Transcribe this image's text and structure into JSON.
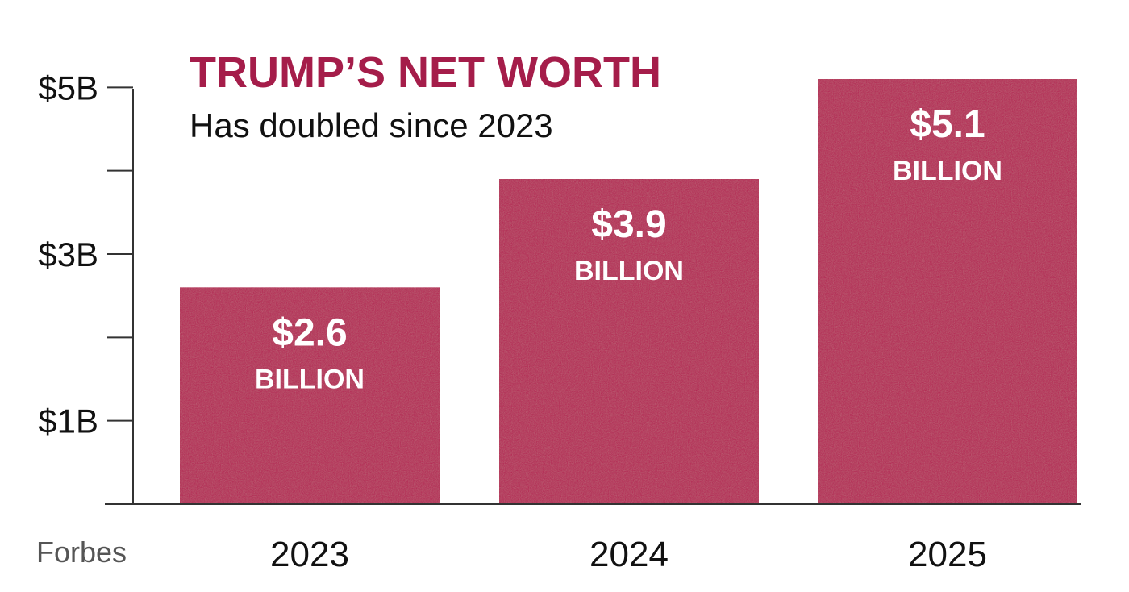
{
  "colors": {
    "bar": "#b52453",
    "title": "#a51d4a",
    "axis": "#333333",
    "text": "#111111",
    "source": "#555555"
  },
  "chart_data": {
    "type": "bar",
    "title": "TRUMP’S NET WORTH",
    "subtitle": "Has doubled since 2023",
    "source": "Forbes",
    "categories": [
      "2023",
      "2024",
      "2025"
    ],
    "values": [
      2.6,
      3.9,
      5.1
    ],
    "value_labels": [
      "$2.6",
      "$3.9",
      "$5.1"
    ],
    "value_unit_label": "BILLION",
    "ylim": [
      0,
      5.1
    ],
    "yticks": [
      1,
      2,
      3,
      4,
      5
    ],
    "ytick_labels": [
      "$1B",
      "",
      "$3B",
      "",
      "$5B"
    ],
    "grid": false,
    "legend": "none"
  }
}
